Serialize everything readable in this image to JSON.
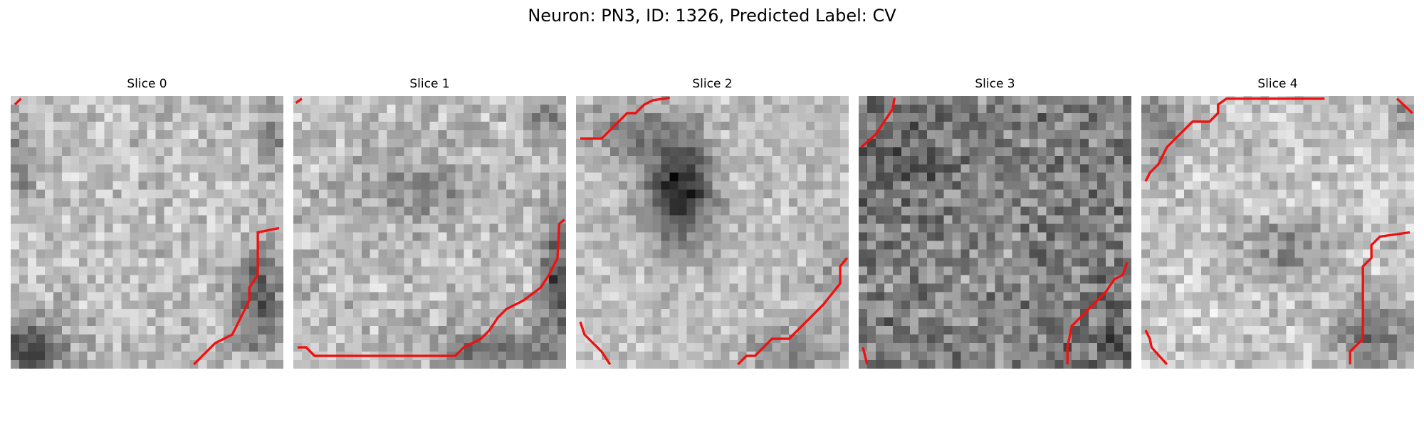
{
  "figure": {
    "title": "Neuron: PN3, ID: 1326, Predicted Label: CV"
  },
  "panels": [
    {
      "title": "Slice 0"
    },
    {
      "title": "Slice 1"
    },
    {
      "title": "Slice 2"
    },
    {
      "title": "Slice 3"
    },
    {
      "title": "Slice 4"
    }
  ],
  "contour_color": "#ee1111",
  "colormap": "gray"
}
